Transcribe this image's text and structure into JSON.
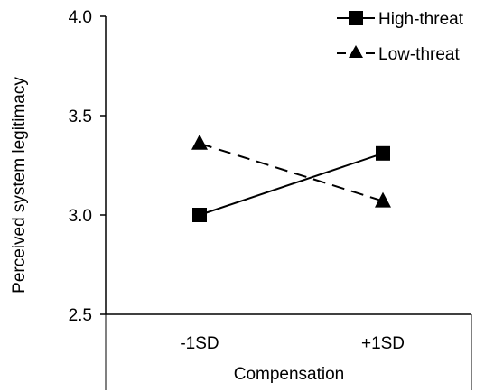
{
  "chart_data": {
    "type": "line",
    "title": "",
    "xlabel": "Compensation",
    "ylabel": "Perceived system legitimacy",
    "categories": [
      "-1SD",
      "+1SD"
    ],
    "ylim": [
      2.5,
      4.0
    ],
    "yticks": [
      "2.5",
      "3.0",
      "3.5",
      "4.0"
    ],
    "grid": false,
    "legend_position": "top-right",
    "series": [
      {
        "name": "High-threat",
        "values": [
          3.0,
          3.31
        ],
        "marker": "square",
        "line_style": "solid",
        "color": "#000000"
      },
      {
        "name": "Low-threat",
        "values": [
          3.36,
          3.07
        ],
        "marker": "triangle",
        "line_style": "dashed",
        "color": "#000000"
      }
    ]
  }
}
